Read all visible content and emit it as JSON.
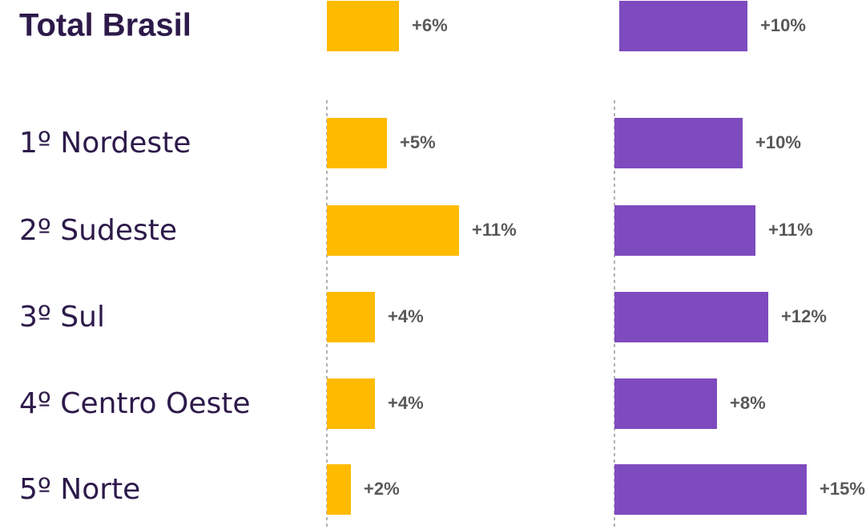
{
  "chart_data": {
    "type": "bar",
    "categories": [
      "Total Brasil",
      "1º Nordeste",
      "2º Sudeste",
      "3º Sul",
      "4º Centro Oeste",
      "5º Norte"
    ],
    "series": [
      {
        "color": "#ffbb00",
        "values": [
          6,
          5,
          11,
          4,
          4,
          2
        ],
        "value_labels": [
          "+6%",
          "+5%",
          "+11%",
          "+4%",
          "+4%",
          "+2%"
        ]
      },
      {
        "color": "#7e4bbf",
        "values": [
          10,
          10,
          11,
          12,
          8,
          15
        ],
        "value_labels": [
          "+10%",
          "+10%",
          "+11%",
          "+12%",
          "+8%",
          "+15%"
        ]
      }
    ],
    "xlim": [
      0,
      16
    ]
  }
}
